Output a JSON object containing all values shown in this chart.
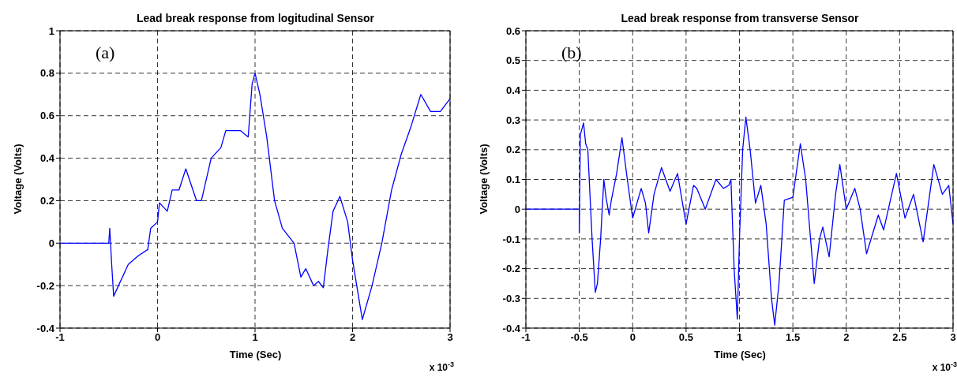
{
  "chart_data": [
    {
      "type": "line",
      "title": "Lead break response from logitudinal Sensor",
      "xlabel": "Time (Sec)",
      "ylabel": "Voltage (Volts)",
      "annotations": [
        "(a)",
        "x 10$^{-3}$"
      ],
      "xlim": [
        -1,
        3
      ],
      "xticks": [
        -1,
        0,
        1,
        2,
        3
      ],
      "ylim": [
        -0.4,
        1
      ],
      "yticks": [
        -0.4,
        -0.2,
        0,
        0.2,
        0.4,
        0.6,
        0.8,
        1
      ],
      "grid": true,
      "marker": "none",
      "line_style": "solid",
      "series": [
        {
          "color": "#0000ff",
          "x": [
            -1,
            -0.5,
            -0.49,
            -0.47,
            -0.45,
            -0.4,
            -0.3,
            -0.2,
            -0.1,
            -0.07,
            0,
            0.02,
            0.1,
            0.15,
            0.22,
            0.29,
            0.4,
            0.45,
            0.55,
            0.65,
            0.7,
            0.85,
            0.93,
            0.97,
            1.0,
            1.05,
            1.12,
            1.2,
            1.28,
            1.4,
            1.47,
            1.52,
            1.6,
            1.65,
            1.7,
            1.75,
            1.8,
            1.87,
            1.95,
            2.0,
            2.1,
            2.2,
            2.3,
            2.4,
            2.5,
            2.6,
            2.7,
            2.8,
            2.9,
            3.0
          ],
          "values": [
            0,
            0,
            0.07,
            -0.1,
            -0.25,
            -0.2,
            -0.1,
            -0.06,
            -0.03,
            0.07,
            0.1,
            0.19,
            0.15,
            0.25,
            0.25,
            0.35,
            0.2,
            0.2,
            0.4,
            0.45,
            0.53,
            0.53,
            0.5,
            0.75,
            0.8,
            0.7,
            0.5,
            0.2,
            0.07,
            0,
            -0.16,
            -0.12,
            -0.2,
            -0.18,
            -0.21,
            -0.02,
            0.15,
            0.22,
            0.1,
            -0.08,
            -0.36,
            -0.2,
            0,
            0.25,
            0.42,
            0.55,
            0.7,
            0.62,
            0.62,
            0.68
          ]
        }
      ]
    },
    {
      "type": "line",
      "title": "Lead break response from transverse Sensor",
      "xlabel": "Time (Sec)",
      "ylabel": "Voltage (Volts)",
      "annotations": [
        "(b)",
        "x 10$^{-3}$"
      ],
      "xlim": [
        -1,
        3
      ],
      "xticks": [
        -1,
        -0.5,
        0,
        0.5,
        1,
        1.5,
        2,
        2.5,
        3
      ],
      "ylim": [
        -0.4,
        0.6
      ],
      "yticks": [
        -0.4,
        -0.3,
        -0.2,
        -0.1,
        0,
        0.1,
        0.2,
        0.3,
        0.4,
        0.5,
        0.6
      ],
      "grid": true,
      "marker": "none",
      "line_style": "solid",
      "series": [
        {
          "color": "#0000ff",
          "x": [
            -1,
            -0.5,
            -0.5,
            -0.49,
            -0.46,
            -0.44,
            -0.42,
            -0.38,
            -0.35,
            -0.33,
            -0.3,
            -0.27,
            -0.25,
            -0.22,
            -0.2,
            -0.15,
            -0.1,
            -0.05,
            0,
            0.08,
            0.12,
            0.15,
            0.2,
            0.27,
            0.35,
            0.42,
            0.5,
            0.57,
            0.6,
            0.68,
            0.78,
            0.85,
            0.9,
            0.92,
            0.95,
            0.98,
            1.0,
            1.03,
            1.06,
            1.1,
            1.15,
            1.2,
            1.25,
            1.3,
            1.33,
            1.37,
            1.42,
            1.5,
            1.57,
            1.62,
            1.7,
            1.75,
            1.78,
            1.84,
            1.9,
            1.94,
            2.0,
            2.08,
            2.13,
            2.19,
            2.3,
            2.35,
            2.47,
            2.55,
            2.63,
            2.72,
            2.82,
            2.9,
            2.96,
            3.0
          ],
          "values": [
            0,
            0,
            -0.08,
            0.25,
            0.29,
            0.22,
            0.2,
            -0.1,
            -0.28,
            -0.25,
            -0.1,
            0.1,
            0.04,
            -0.02,
            0.03,
            0.12,
            0.24,
            0.1,
            -0.03,
            0.07,
            0.02,
            -0.08,
            0.05,
            0.14,
            0.06,
            0.12,
            -0.05,
            0.08,
            0.07,
            0,
            0.1,
            0.07,
            0.08,
            0.1,
            -0.2,
            -0.37,
            -0.1,
            0.2,
            0.31,
            0.2,
            0.02,
            0.08,
            -0.05,
            -0.3,
            -0.39,
            -0.25,
            0.03,
            0.04,
            0.22,
            0.1,
            -0.25,
            -0.1,
            -0.06,
            -0.16,
            0.05,
            0.15,
            0,
            0.07,
            0,
            -0.15,
            -0.02,
            -0.07,
            0.12,
            -0.03,
            0.05,
            -0.11,
            0.15,
            0.05,
            0.08,
            -0.05
          ]
        }
      ]
    }
  ]
}
